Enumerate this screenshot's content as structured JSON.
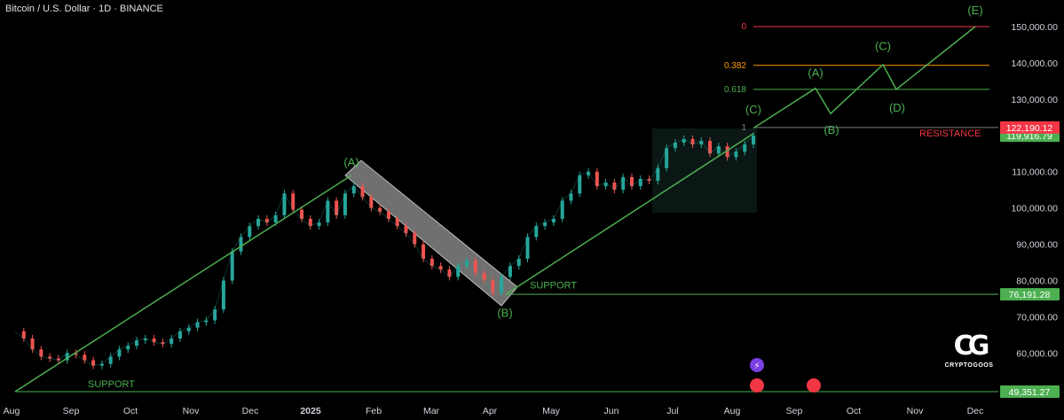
{
  "header": {
    "title": "Bitcoin / U.S. Dollar · 1D · BINANCE"
  },
  "brand": {
    "name": "CRYPTOGOOS",
    "mark": "CG"
  },
  "colors": {
    "background": "#000000",
    "up": "#26a69a",
    "down": "#ef5350",
    "trend": "#4caf50",
    "resistance": "#f23645",
    "fib_0": "#f23645",
    "fib_0382": "#ff9800",
    "fib_0618": "#4caf50",
    "label_green": "#4caf50"
  },
  "chart_data": {
    "type": "line",
    "x_ticks": [
      "Aug",
      "Sep",
      "Oct",
      "Nov",
      "Dec",
      "2025",
      "Feb",
      "Mar",
      "Apr",
      "May",
      "Jun",
      "Jul",
      "Aug",
      "Sep",
      "Oct",
      "Nov",
      "Dec"
    ],
    "y_ticks": [
      "150,000.00",
      "140,000.00",
      "130,000.00",
      "110,000.00",
      "100,000.00",
      "90,000.00",
      "80,000.00",
      "70,000.00",
      "60,000.00"
    ],
    "ylim": [
      46000,
      154000
    ],
    "price_labels": [
      {
        "text": "119,916.79",
        "value": 119916.79,
        "color": "#4caf50"
      },
      {
        "text": "122,190.12",
        "value": 122190.12,
        "color": "#f23645"
      },
      {
        "text": "76,191.28",
        "value": 76191.28,
        "color": "#4caf50"
      },
      {
        "text": "49,351.27",
        "value": 49351.27,
        "color": "#4caf50"
      }
    ],
    "fib_levels": [
      {
        "label": "0",
        "value": 150000,
        "color": "#f23645"
      },
      {
        "label": "0.382",
        "value": 139300,
        "color": "#ff9800"
      },
      {
        "label": "0.618",
        "value": 132700,
        "color": "#4caf50"
      },
      {
        "label": "1",
        "value": 122190.12,
        "color": "#787b86"
      }
    ],
    "series": [
      {
        "x": [
          0,
          10,
          20,
          30,
          40,
          50,
          60,
          70,
          80,
          90,
          100,
          110,
          120,
          130,
          140,
          150,
          160,
          170,
          180,
          190,
          200,
          210,
          220,
          230,
          240,
          250,
          260,
          270,
          280,
          290,
          300,
          310,
          320,
          330,
          340,
          350,
          360,
          370,
          380,
          390,
          400,
          410,
          420,
          430,
          440,
          450,
          460,
          470,
          480,
          490,
          500,
          510,
          520,
          530,
          540,
          550,
          560,
          570,
          580,
          590,
          600,
          610,
          620,
          630,
          640,
          650,
          660,
          670,
          680,
          690,
          700,
          710,
          720,
          730,
          740,
          750,
          760,
          770,
          780,
          790,
          800,
          810,
          820,
          830,
          840,
          850
        ],
        "values": [
          66000,
          64000,
          61000,
          59000,
          58500,
          58000,
          60000,
          59500,
          58000,
          56500,
          57000,
          59000,
          61000,
          62000,
          63500,
          64000,
          63000,
          62500,
          64000,
          66000,
          67000,
          68500,
          69000,
          72000,
          80000,
          88000,
          92000,
          95000,
          97000,
          96000,
          98000,
          104000,
          99500,
          97000,
          95000,
          96000,
          102000,
          98000,
          104000,
          106000,
          103000,
          100000,
          99000,
          97000,
          95000,
          93000,
          90000,
          86000,
          84000,
          83000,
          81000,
          84000,
          85500,
          82000,
          80000,
          76500,
          81000,
          84000,
          86000,
          92000,
          95000,
          96000,
          97000,
          102000,
          104000,
          109000,
          110000,
          106000,
          107000,
          105000,
          108500,
          106000,
          108000,
          107500,
          111000,
          116500,
          118000,
          119000,
          117500,
          118500,
          115000,
          117000,
          114000,
          115500,
          117500,
          119900
        ]
      }
    ],
    "annotations": {
      "waves_left": [
        {
          "text": "(A)",
          "x": 396,
          "value": 111500
        },
        {
          "text": "(B)",
          "x": 569,
          "value": 70000
        },
        {
          "text": "(C)",
          "x": 849,
          "value": 126000
        }
      ],
      "waves_projected": [
        {
          "text": "(A)",
          "x": 919,
          "value": 136200
        },
        {
          "text": "(B)",
          "x": 937,
          "value": 120500
        },
        {
          "text": "(C)",
          "x": 995,
          "value": 143500
        },
        {
          "text": "(D)",
          "x": 1011,
          "value": 126500
        },
        {
          "text": "(E)",
          "x": 1099,
          "value": 153400
        }
      ],
      "projection_path": [
        [
          849,
          122000
        ],
        [
          919,
          133000
        ],
        [
          936,
          126000
        ],
        [
          995,
          139500
        ],
        [
          1010,
          132700
        ],
        [
          1099,
          150000
        ]
      ],
      "support_labels": [
        {
          "text": "SUPPORT",
          "x": 597,
          "value": 77800
        },
        {
          "text": "SUPPORT",
          "x": 99,
          "value": 50600
        }
      ],
      "resistance_label": {
        "text": "RESISTANCE",
        "x": 1036,
        "value": 119700
      },
      "trendlines": [
        {
          "from": [
            17,
            49351
          ],
          "to": [
            396,
            109000
          ]
        },
        {
          "from": [
            570,
            76191
          ],
          "to": [
            849,
            120500
          ]
        }
      ],
      "horizontal_lines": [
        {
          "value": 76191.28,
          "from_x": 570,
          "color": "#4caf50"
        },
        {
          "value": 49351.27,
          "from_x": 17,
          "color": "#4caf50"
        },
        {
          "value": 122190.12,
          "from_x": 849,
          "color": "#787b86"
        }
      ]
    },
    "grid": false,
    "legend": "none"
  }
}
